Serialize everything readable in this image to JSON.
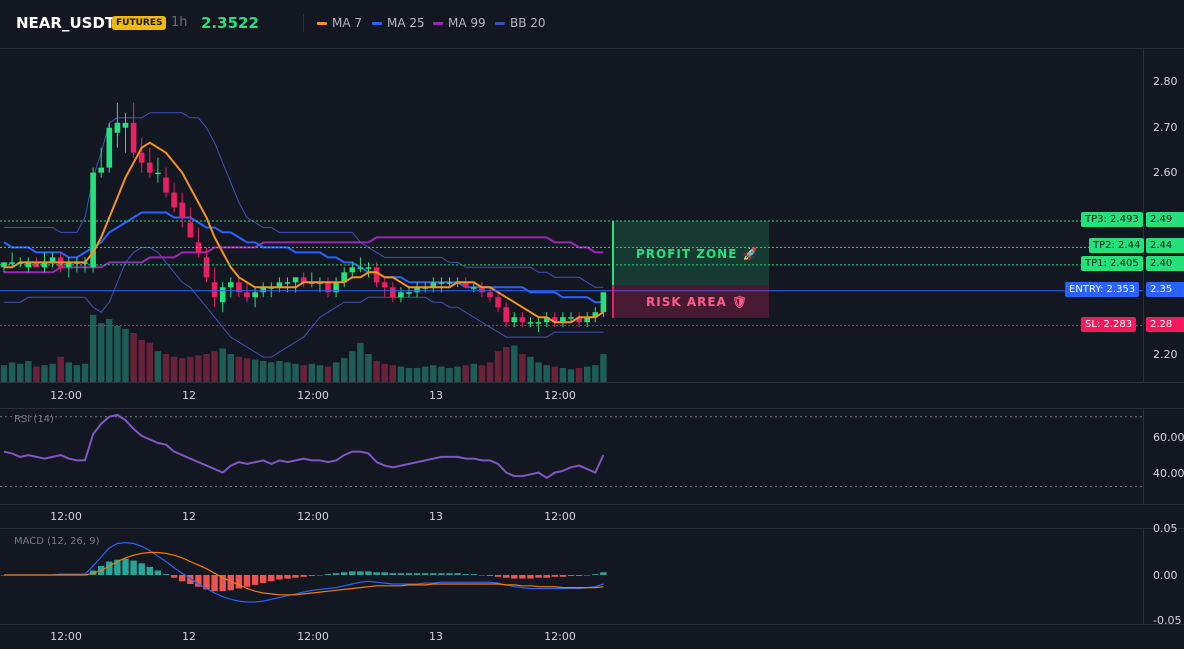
{
  "header": {
    "symbol": "NEAR_USDT",
    "badge": "FUTURES",
    "timeframe": "1h",
    "price": "2.3522",
    "legend": [
      {
        "label": "MA 7",
        "color": "#f7931a"
      },
      {
        "label": "MA 25",
        "color": "#2962ff"
      },
      {
        "label": "MA 99",
        "color": "#9c27b0"
      },
      {
        "label": "BB 20",
        "color": "#3f51b5"
      }
    ]
  },
  "colors": {
    "up": "#26e07c",
    "down": "#e91e63",
    "ma7": "#f7931a",
    "ma25": "#2962ff",
    "ma99": "#9c27b0",
    "bb": "#3f51b5",
    "rsi": "#7e57c2",
    "macd": "#2962ff",
    "signal": "#f57c00",
    "hist_up": "#26a69a",
    "hist_down": "#ef5350"
  },
  "price_axis": {
    "ticks": [
      "2.80",
      "2.70",
      "2.60",
      "2.20"
    ]
  },
  "x_axis": {
    "labels": [
      "12:00",
      "12",
      "12:00",
      "13",
      "12:00"
    ]
  },
  "levels": [
    {
      "name": "TP3",
      "tag": "TP3: 2.493",
      "value": "2.49",
      "price": 2.493,
      "color": "#26e07c",
      "text": "#131722"
    },
    {
      "name": "TP2",
      "tag": "TP2: 2.44",
      "value": "2.44",
      "price": 2.44,
      "color": "#26e07c",
      "text": "#131722"
    },
    {
      "name": "TP1",
      "tag": "TP1: 2.405",
      "value": "2.40",
      "price": 2.405,
      "color": "#26e07c",
      "text": "#131722"
    },
    {
      "name": "ENTRY",
      "tag": "ENTRY: 2.353",
      "value": "2.35",
      "price": 2.353,
      "color": "#2962ff",
      "text": "#ffffff"
    },
    {
      "name": "SL",
      "tag": "SL: 2.283",
      "value": "2.28",
      "price": 2.283,
      "color": "#f7185b",
      "text": "#ffffff"
    }
  ],
  "zones": {
    "profit": "PROFIT ZONE 🚀",
    "risk": "RISK AREA 🛡"
  },
  "rsi": {
    "label": "RSI (14)",
    "ticks": [
      "60.00",
      "40.00"
    ],
    "upper": 70,
    "lower": 30
  },
  "macd": {
    "label": "MACD (12, 26, 9)",
    "ticks": [
      "0.05",
      "0.00",
      "-0.05"
    ]
  },
  "chart_data": {
    "type": "candlestick",
    "ylim": [
      2.17,
      2.84
    ],
    "candles": [
      [
        2.4,
        2.41,
        2.39,
        2.41
      ],
      [
        2.41,
        2.43,
        2.4,
        2.41
      ],
      [
        2.41,
        2.42,
        2.4,
        2.41
      ],
      [
        2.4,
        2.42,
        2.39,
        2.41
      ],
      [
        2.41,
        2.42,
        2.4,
        2.4
      ],
      [
        2.4,
        2.43,
        2.39,
        2.41
      ],
      [
        2.41,
        2.43,
        2.4,
        2.42
      ],
      [
        2.42,
        2.43,
        2.39,
        2.4
      ],
      [
        2.4,
        2.42,
        2.38,
        2.41
      ],
      [
        2.41,
        2.42,
        2.39,
        2.41
      ],
      [
        2.41,
        2.42,
        2.39,
        2.41
      ],
      [
        2.4,
        2.6,
        2.39,
        2.59
      ],
      [
        2.59,
        2.64,
        2.58,
        2.6
      ],
      [
        2.6,
        2.69,
        2.59,
        2.68
      ],
      [
        2.67,
        2.73,
        2.64,
        2.69
      ],
      [
        2.68,
        2.71,
        2.63,
        2.69
      ],
      [
        2.69,
        2.73,
        2.62,
        2.63
      ],
      [
        2.63,
        2.66,
        2.59,
        2.61
      ],
      [
        2.61,
        2.64,
        2.58,
        2.59
      ],
      [
        2.59,
        2.62,
        2.57,
        2.59
      ],
      [
        2.58,
        2.6,
        2.54,
        2.55
      ],
      [
        2.55,
        2.57,
        2.51,
        2.52
      ],
      [
        2.53,
        2.55,
        2.48,
        2.5
      ],
      [
        2.49,
        2.52,
        2.46,
        2.46
      ],
      [
        2.45,
        2.48,
        2.42,
        2.43
      ],
      [
        2.42,
        2.44,
        2.37,
        2.38
      ],
      [
        2.37,
        2.4,
        2.32,
        2.34
      ],
      [
        2.33,
        2.37,
        2.31,
        2.36
      ],
      [
        2.36,
        2.38,
        2.34,
        2.37
      ],
      [
        2.37,
        2.38,
        2.34,
        2.35
      ],
      [
        2.35,
        2.37,
        2.33,
        2.34
      ],
      [
        2.34,
        2.36,
        2.32,
        2.35
      ],
      [
        2.35,
        2.37,
        2.34,
        2.36
      ],
      [
        2.36,
        2.37,
        2.34,
        2.36
      ],
      [
        2.36,
        2.38,
        2.35,
        2.37
      ],
      [
        2.37,
        2.38,
        2.35,
        2.37
      ],
      [
        2.37,
        2.38,
        2.35,
        2.38
      ],
      [
        2.38,
        2.39,
        2.36,
        2.37
      ],
      [
        2.37,
        2.39,
        2.36,
        2.37
      ],
      [
        2.37,
        2.38,
        2.35,
        2.37
      ],
      [
        2.37,
        2.38,
        2.34,
        2.35
      ],
      [
        2.35,
        2.38,
        2.34,
        2.37
      ],
      [
        2.37,
        2.4,
        2.36,
        2.39
      ],
      [
        2.39,
        2.41,
        2.38,
        2.4
      ],
      [
        2.4,
        2.42,
        2.39,
        2.4
      ],
      [
        2.4,
        2.41,
        2.38,
        2.4
      ],
      [
        2.4,
        2.41,
        2.36,
        2.37
      ],
      [
        2.37,
        2.38,
        2.34,
        2.36
      ],
      [
        2.36,
        2.37,
        2.33,
        2.34
      ],
      [
        2.34,
        2.36,
        2.33,
        2.35
      ],
      [
        2.35,
        2.36,
        2.34,
        2.35
      ],
      [
        2.35,
        2.37,
        2.34,
        2.36
      ],
      [
        2.36,
        2.37,
        2.35,
        2.36
      ],
      [
        2.36,
        2.38,
        2.35,
        2.37
      ],
      [
        2.37,
        2.38,
        2.35,
        2.37
      ],
      [
        2.37,
        2.38,
        2.36,
        2.37
      ],
      [
        2.37,
        2.38,
        2.36,
        2.37
      ],
      [
        2.37,
        2.38,
        2.36,
        2.36
      ],
      [
        2.36,
        2.37,
        2.35,
        2.36
      ],
      [
        2.36,
        2.37,
        2.34,
        2.35
      ],
      [
        2.35,
        2.36,
        2.33,
        2.34
      ],
      [
        2.34,
        2.35,
        2.31,
        2.32
      ],
      [
        2.32,
        2.33,
        2.28,
        2.29
      ],
      [
        2.29,
        2.31,
        2.28,
        2.3
      ],
      [
        2.3,
        2.31,
        2.28,
        2.29
      ],
      [
        2.29,
        2.3,
        2.28,
        2.29
      ],
      [
        2.29,
        2.3,
        2.27,
        2.29
      ],
      [
        2.29,
        2.31,
        2.28,
        2.3
      ],
      [
        2.3,
        2.31,
        2.28,
        2.29
      ],
      [
        2.29,
        2.31,
        2.28,
        2.3
      ],
      [
        2.3,
        2.31,
        2.29,
        2.3
      ],
      [
        2.3,
        2.31,
        2.28,
        2.29
      ],
      [
        2.29,
        2.31,
        2.28,
        2.3
      ],
      [
        2.3,
        2.32,
        2.29,
        2.31
      ],
      [
        2.31,
        2.35,
        2.3,
        2.35
      ]
    ],
    "volume": [
      12,
      14,
      13,
      15,
      11,
      12,
      13,
      18,
      14,
      12,
      13,
      48,
      42,
      45,
      40,
      38,
      35,
      30,
      28,
      22,
      20,
      18,
      17,
      18,
      19,
      20,
      22,
      24,
      20,
      18,
      17,
      16,
      15,
      14,
      15,
      14,
      13,
      12,
      13,
      12,
      11,
      14,
      17,
      22,
      28,
      20,
      15,
      13,
      12,
      11,
      10,
      10,
      11,
      12,
      11,
      10,
      11,
      12,
      13,
      12,
      14,
      22,
      25,
      26,
      20,
      18,
      14,
      12,
      11,
      10,
      9,
      10,
      11,
      12,
      20
    ],
    "ma7": [
      2.4,
      2.4,
      2.41,
      2.41,
      2.41,
      2.41,
      2.41,
      2.41,
      2.41,
      2.41,
      2.41,
      2.43,
      2.46,
      2.5,
      2.54,
      2.58,
      2.61,
      2.64,
      2.65,
      2.64,
      2.63,
      2.61,
      2.59,
      2.56,
      2.53,
      2.5,
      2.46,
      2.43,
      2.4,
      2.38,
      2.37,
      2.36,
      2.36,
      2.36,
      2.36,
      2.36,
      2.36,
      2.37,
      2.37,
      2.37,
      2.37,
      2.37,
      2.37,
      2.38,
      2.38,
      2.39,
      2.39,
      2.38,
      2.38,
      2.37,
      2.36,
      2.36,
      2.36,
      2.36,
      2.36,
      2.36,
      2.37,
      2.37,
      2.37,
      2.36,
      2.36,
      2.35,
      2.34,
      2.33,
      2.32,
      2.31,
      2.3,
      2.3,
      2.29,
      2.29,
      2.29,
      2.3,
      2.3,
      2.3,
      2.31
    ],
    "ma25": [
      2.45,
      2.44,
      2.44,
      2.44,
      2.43,
      2.43,
      2.43,
      2.43,
      2.42,
      2.42,
      2.43,
      2.44,
      2.45,
      2.47,
      2.48,
      2.49,
      2.5,
      2.51,
      2.51,
      2.51,
      2.51,
      2.5,
      2.5,
      2.5,
      2.49,
      2.48,
      2.48,
      2.47,
      2.47,
      2.46,
      2.45,
      2.45,
      2.44,
      2.44,
      2.44,
      2.44,
      2.43,
      2.43,
      2.43,
      2.43,
      2.42,
      2.42,
      2.41,
      2.41,
      2.4,
      2.39,
      2.39,
      2.38,
      2.38,
      2.38,
      2.37,
      2.37,
      2.37,
      2.37,
      2.37,
      2.37,
      2.37,
      2.36,
      2.36,
      2.36,
      2.36,
      2.36,
      2.36,
      2.36,
      2.36,
      2.35,
      2.35,
      2.35,
      2.35,
      2.34,
      2.34,
      2.34,
      2.34,
      2.33,
      2.33
    ],
    "ma99": [
      2.39,
      2.39,
      2.39,
      2.39,
      2.39,
      2.39,
      2.39,
      2.4,
      2.4,
      2.4,
      2.4,
      2.4,
      2.4,
      2.41,
      2.41,
      2.41,
      2.41,
      2.41,
      2.42,
      2.42,
      2.42,
      2.42,
      2.43,
      2.43,
      2.43,
      2.43,
      2.44,
      2.44,
      2.44,
      2.44,
      2.44,
      2.44,
      2.45,
      2.45,
      2.45,
      2.45,
      2.45,
      2.45,
      2.45,
      2.45,
      2.45,
      2.45,
      2.45,
      2.45,
      2.45,
      2.45,
      2.46,
      2.46,
      2.46,
      2.46,
      2.46,
      2.46,
      2.46,
      2.46,
      2.46,
      2.46,
      2.46,
      2.46,
      2.46,
      2.46,
      2.46,
      2.46,
      2.46,
      2.46,
      2.46,
      2.46,
      2.46,
      2.46,
      2.45,
      2.45,
      2.45,
      2.44,
      2.44,
      2.43,
      2.43
    ],
    "bb_upper": [
      2.48,
      2.48,
      2.48,
      2.48,
      2.48,
      2.48,
      2.48,
      2.47,
      2.47,
      2.47,
      2.5,
      2.58,
      2.63,
      2.69,
      2.7,
      2.7,
      2.7,
      2.7,
      2.71,
      2.71,
      2.71,
      2.71,
      2.71,
      2.7,
      2.7,
      2.68,
      2.65,
      2.61,
      2.57,
      2.53,
      2.5,
      2.49,
      2.48,
      2.48,
      2.47,
      2.47,
      2.47,
      2.47,
      2.47,
      2.47,
      2.47,
      2.47,
      2.47,
      2.47,
      2.45,
      2.44,
      2.43,
      2.42,
      2.42,
      2.42,
      2.42,
      2.42,
      2.42,
      2.42,
      2.42,
      2.41,
      2.41,
      2.4,
      2.4,
      2.4,
      2.4,
      2.4,
      2.4,
      2.4,
      2.4,
      2.4,
      2.39,
      2.39,
      2.38,
      2.38,
      2.38,
      2.38,
      2.37,
      2.36,
      2.36
    ],
    "bb_lower": [
      2.33,
      2.33,
      2.33,
      2.34,
      2.34,
      2.34,
      2.34,
      2.34,
      2.34,
      2.34,
      2.34,
      2.32,
      2.31,
      2.33,
      2.37,
      2.41,
      2.43,
      2.44,
      2.44,
      2.43,
      2.41,
      2.39,
      2.37,
      2.36,
      2.34,
      2.32,
      2.3,
      2.28,
      2.26,
      2.25,
      2.24,
      2.23,
      2.22,
      2.22,
      2.23,
      2.24,
      2.25,
      2.26,
      2.28,
      2.3,
      2.31,
      2.32,
      2.33,
      2.33,
      2.33,
      2.34,
      2.34,
      2.34,
      2.34,
      2.34,
      2.34,
      2.34,
      2.34,
      2.33,
      2.33,
      2.32,
      2.32,
      2.31,
      2.3,
      2.29,
      2.28,
      2.27,
      2.26,
      2.26,
      2.26,
      2.26,
      2.26,
      2.26,
      2.27,
      2.27,
      2.27,
      2.27,
      2.27,
      2.27,
      2.27
    ],
    "rsi_values": [
      50,
      49,
      47,
      48,
      47,
      46,
      47,
      48,
      46,
      45,
      45,
      60,
      66,
      70,
      71,
      68,
      63,
      59,
      57,
      55,
      54,
      50,
      48,
      46,
      44,
      42,
      40,
      38,
      42,
      44,
      43,
      44,
      45,
      43,
      45,
      44,
      45,
      46,
      45,
      45,
      44,
      45,
      48,
      50,
      50,
      49,
      44,
      42,
      41,
      42,
      43,
      44,
      45,
      46,
      47,
      47,
      47,
      46,
      46,
      45,
      45,
      43,
      38,
      36,
      36,
      37,
      38,
      35,
      38,
      39,
      41,
      42,
      40,
      38,
      48
    ],
    "macd_hist": [
      0,
      0,
      0,
      0,
      0,
      0,
      0,
      0,
      0,
      0,
      0,
      0.005,
      0.01,
      0.015,
      0.017,
      0.018,
      0.016,
      0.013,
      0.009,
      0.005,
      0.001,
      -0.003,
      -0.007,
      -0.01,
      -0.013,
      -0.016,
      -0.018,
      -0.018,
      -0.017,
      -0.015,
      -0.013,
      -0.011,
      -0.009,
      -0.007,
      -0.005,
      -0.004,
      -0.003,
      -0.002,
      -0.001,
      0.0,
      0.001,
      0.002,
      0.003,
      0.004,
      0.004,
      0.004,
      0.003,
      0.003,
      0.002,
      0.002,
      0.002,
      0.002,
      0.002,
      0.002,
      0.002,
      0.002,
      0.002,
      0.001,
      0.001,
      0.0,
      -0.001,
      -0.002,
      -0.003,
      -0.004,
      -0.004,
      -0.004,
      -0.003,
      -0.003,
      -0.002,
      -0.002,
      -0.001,
      -0.001,
      0.0,
      0.001,
      0.003
    ],
    "macd_line": [
      0,
      0,
      0,
      0,
      0,
      0,
      0,
      0.001,
      0.001,
      0.001,
      0.001,
      0.01,
      0.02,
      0.03,
      0.035,
      0.036,
      0.035,
      0.032,
      0.027,
      0.021,
      0.015,
      0.008,
      0.002,
      -0.004,
      -0.01,
      -0.015,
      -0.02,
      -0.024,
      -0.027,
      -0.029,
      -0.03,
      -0.03,
      -0.029,
      -0.027,
      -0.025,
      -0.023,
      -0.021,
      -0.019,
      -0.017,
      -0.016,
      -0.015,
      -0.014,
      -0.012,
      -0.01,
      -0.008,
      -0.007,
      -0.008,
      -0.009,
      -0.01,
      -0.01,
      -0.01,
      -0.01,
      -0.009,
      -0.009,
      -0.008,
      -0.008,
      -0.008,
      -0.008,
      -0.008,
      -0.008,
      -0.008,
      -0.009,
      -0.011,
      -0.013,
      -0.014,
      -0.015,
      -0.015,
      -0.015,
      -0.015,
      -0.015,
      -0.015,
      -0.015,
      -0.014,
      -0.013,
      -0.01
    ],
    "signal_line": [
      0,
      0,
      0,
      0,
      0,
      0,
      0,
      0,
      0,
      0,
      0,
      0.002,
      0.005,
      0.01,
      0.015,
      0.019,
      0.022,
      0.024,
      0.025,
      0.025,
      0.024,
      0.022,
      0.019,
      0.015,
      0.011,
      0.007,
      0.002,
      -0.003,
      -0.007,
      -0.011,
      -0.015,
      -0.018,
      -0.02,
      -0.021,
      -0.022,
      -0.022,
      -0.022,
      -0.021,
      -0.02,
      -0.019,
      -0.018,
      -0.017,
      -0.016,
      -0.015,
      -0.014,
      -0.013,
      -0.012,
      -0.012,
      -0.012,
      -0.012,
      -0.011,
      -0.011,
      -0.011,
      -0.01,
      -0.01,
      -0.01,
      -0.01,
      -0.01,
      -0.01,
      -0.01,
      -0.01,
      -0.01,
      -0.011,
      -0.011,
      -0.012,
      -0.012,
      -0.013,
      -0.013,
      -0.013,
      -0.014,
      -0.014,
      -0.014,
      -0.014,
      -0.014,
      -0.013
    ]
  }
}
